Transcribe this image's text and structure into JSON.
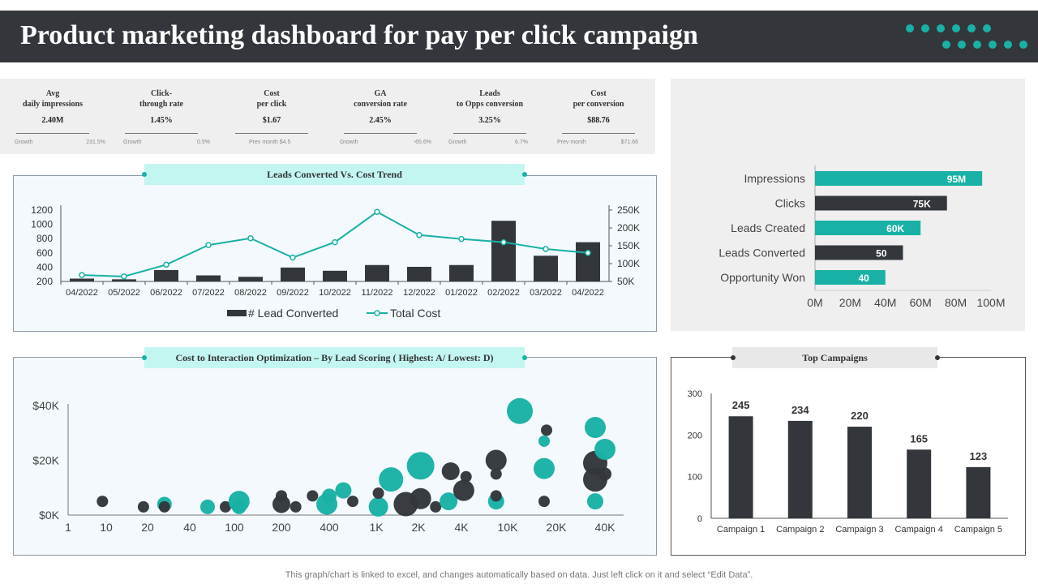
{
  "header": {
    "title": "Product marketing dashboard for pay per click campaign"
  },
  "kpis": [
    {
      "label": "Avg\ndaily impressions",
      "value": "2.40M",
      "foot_left": "Growth",
      "foot_right": "231.5%"
    },
    {
      "label": "Click-\nthrough rate",
      "value": "1.45%",
      "foot_left": "Growth",
      "foot_right": "0.5%"
    },
    {
      "label": "Cost\nper click",
      "value": "$1.67",
      "foot_left": "Prev month $4.5",
      "foot_right": ""
    },
    {
      "label": "GA\nconversion rate",
      "value": "2.45%",
      "foot_left": "Growth",
      "foot_right": "-65.6%"
    },
    {
      "label": "Leads\nto Opps conversion",
      "value": "3.25%",
      "foot_left": "Growth",
      "foot_right": "6.7%"
    },
    {
      "label": "Cost\nper conversion",
      "value": "$88.76",
      "foot_left": "Prev month",
      "foot_right": "$71.66"
    }
  ],
  "panels": {
    "trend_title": "Leads Converted Vs. Cost Trend",
    "scatter_title": "Cost to Interaction Optimization – By Lead Scoring ( Highest: A/ Lowest: D)",
    "top_title": "Top Campaigns"
  },
  "footnote": "This graph/chart is linked to excel,  and changes automatically based on data. Just left click on it and select “Edit Data”.",
  "colors": {
    "teal": "#19b1a5",
    "dark": "#33373c",
    "bg_grey": "#efefef"
  },
  "chart_data": [
    {
      "type": "bar",
      "id": "trend",
      "title": "Leads Converted Vs. Cost Trend",
      "categories": [
        "04/2022",
        "05/2022",
        "06/2022",
        "07/2022",
        "08/2022",
        "09/2022",
        "10/2022",
        "11/2022",
        "12/2022",
        "01/2022",
        "02/2022",
        "03/2022",
        "04/2022"
      ],
      "series": [
        {
          "name": "# Lead Converted",
          "kind": "bar",
          "axis": "left",
          "values": [
            240,
            230,
            360,
            285,
            265,
            395,
            350,
            430,
            405,
            430,
            1050,
            560,
            750
          ]
        },
        {
          "name": "Total Cost",
          "kind": "line",
          "axis": "right",
          "values": [
            68000,
            64000,
            97000,
            152000,
            171000,
            117000,
            160000,
            245000,
            180000,
            169000,
            160000,
            141000,
            130000
          ]
        }
      ],
      "left_ticks": [
        "200",
        "400",
        "600",
        "800",
        "1000",
        "1200"
      ],
      "left_range": [
        200,
        1200
      ],
      "right_ticks": [
        "50K",
        "100K",
        "150K",
        "200K",
        "250K"
      ],
      "right_range": [
        50000,
        250000
      ]
    },
    {
      "type": "bar",
      "id": "funnel",
      "orientation": "horizontal",
      "categories": [
        "Impressions",
        "Clicks",
        "Leads Created",
        "Leads Converted",
        "Opportunity Won"
      ],
      "values": [
        95,
        75,
        60,
        50,
        40
      ],
      "labels": [
        "95M",
        "75K",
        "60K",
        "50",
        "40"
      ],
      "x_ticks": [
        "0M",
        "20M",
        "40M",
        "60M",
        "80M",
        "100M"
      ],
      "xlim": [
        0,
        100
      ]
    },
    {
      "type": "scatter",
      "id": "bubbles",
      "title": "Cost to Interaction Optimization – By Lead Scoring ( Highest: A/ Lowest: D)",
      "x_ticks": [
        "1",
        "10",
        "20",
        "40",
        "100",
        "200",
        "400",
        "1K",
        "2K",
        "4K",
        "10K",
        "20K",
        "40K"
      ],
      "y_ticks": [
        "$0K",
        "$20K",
        "$40K"
      ],
      "ylim": [
        0,
        43
      ],
      "points": [
        {
          "x": 0.9,
          "y": 5,
          "r": 7,
          "c": "dark"
        },
        {
          "x": 1.9,
          "y": 3,
          "r": 7,
          "c": "dark"
        },
        {
          "x": 2.4,
          "y": 4,
          "r": 9,
          "c": "teal"
        },
        {
          "x": 2.4,
          "y": 3,
          "r": 7,
          "c": "dark"
        },
        {
          "x": 3.4,
          "y": 3,
          "r": 9,
          "c": "teal"
        },
        {
          "x": 3.8,
          "y": 3,
          "r": 7,
          "c": "dark"
        },
        {
          "x": 4.1,
          "y": 5,
          "r": 13,
          "c": "teal"
        },
        {
          "x": 4.1,
          "y": 3,
          "r": 9,
          "c": "teal"
        },
        {
          "x": 5.0,
          "y": 7,
          "r": 7,
          "c": "dark"
        },
        {
          "x": 5.0,
          "y": 4,
          "r": 11,
          "c": "dark"
        },
        {
          "x": 5.3,
          "y": 3,
          "r": 7,
          "c": "dark"
        },
        {
          "x": 5.65,
          "y": 7,
          "r": 7,
          "c": "dark"
        },
        {
          "x": 6.0,
          "y": 7,
          "r": 9,
          "c": "teal"
        },
        {
          "x": 5.95,
          "y": 4,
          "r": 13,
          "c": "teal"
        },
        {
          "x": 6.3,
          "y": 9,
          "r": 10,
          "c": "teal"
        },
        {
          "x": 6.5,
          "y": 5,
          "r": 7,
          "c": "dark"
        },
        {
          "x": 7.05,
          "y": 3,
          "r": 12,
          "c": "teal"
        },
        {
          "x": 7.05,
          "y": 8,
          "r": 7,
          "c": "dark"
        },
        {
          "x": 7.35,
          "y": 13,
          "r": 15,
          "c": "teal"
        },
        {
          "x": 7.7,
          "y": 4,
          "r": 15,
          "c": "dark"
        },
        {
          "x": 8.05,
          "y": 6,
          "r": 13,
          "c": "dark"
        },
        {
          "x": 8.05,
          "y": 18,
          "r": 17,
          "c": "teal"
        },
        {
          "x": 8.4,
          "y": 3,
          "r": 7,
          "c": "dark"
        },
        {
          "x": 8.7,
          "y": 5,
          "r": 11,
          "c": "teal"
        },
        {
          "x": 8.75,
          "y": 16,
          "r": 11,
          "c": "dark"
        },
        {
          "x": 9.1,
          "y": 14,
          "r": 7,
          "c": "dark"
        },
        {
          "x": 9.05,
          "y": 9,
          "r": 13,
          "c": "dark"
        },
        {
          "x": 9.75,
          "y": 5,
          "r": 10,
          "c": "teal"
        },
        {
          "x": 9.75,
          "y": 7,
          "r": 7,
          "c": "dark"
        },
        {
          "x": 9.75,
          "y": 15,
          "r": 7,
          "c": "dark"
        },
        {
          "x": 9.75,
          "y": 20,
          "r": 13,
          "c": "dark"
        },
        {
          "x": 10.25,
          "y": 38,
          "r": 16,
          "c": "teal"
        },
        {
          "x": 10.8,
          "y": 31,
          "r": 7,
          "c": "dark"
        },
        {
          "x": 10.75,
          "y": 27,
          "r": 7,
          "c": "teal"
        },
        {
          "x": 10.75,
          "y": 17,
          "r": 13,
          "c": "teal"
        },
        {
          "x": 10.75,
          "y": 5,
          "r": 7,
          "c": "dark"
        },
        {
          "x": 11.8,
          "y": 32,
          "r": 13,
          "c": "teal"
        },
        {
          "x": 11.8,
          "y": 5,
          "r": 10,
          "c": "teal"
        },
        {
          "x": 11.8,
          "y": 13,
          "r": 15,
          "c": "dark"
        },
        {
          "x": 11.8,
          "y": 19,
          "r": 15,
          "c": "dark"
        },
        {
          "x": 12.2,
          "y": 24,
          "r": 13,
          "c": "teal"
        },
        {
          "x": 12.5,
          "y": 15,
          "r": 8,
          "c": "dark"
        }
      ]
    },
    {
      "type": "bar",
      "id": "top_campaigns",
      "title": "Top Campaigns",
      "categories": [
        "Campaign 1",
        "Campaign 2",
        "Campaign 3",
        "Campaign 4",
        "Campaign 5"
      ],
      "values": [
        245,
        234,
        220,
        165,
        123
      ],
      "y_ticks": [
        "0",
        "100",
        "200",
        "300"
      ],
      "ylim": [
        0,
        300
      ]
    }
  ]
}
